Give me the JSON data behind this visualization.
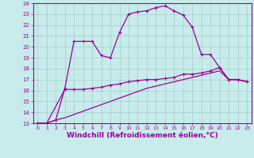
{
  "xlabel": "Windchill (Refroidissement éolien,°C)",
  "background_color": "#c8ecec",
  "grid_color": "#aad0d0",
  "line_color": "#990099",
  "xlim": [
    -0.5,
    23.5
  ],
  "ylim": [
    13,
    24
  ],
  "xticks": [
    0,
    1,
    2,
    3,
    4,
    5,
    6,
    7,
    8,
    9,
    10,
    11,
    12,
    13,
    14,
    15,
    16,
    17,
    18,
    19,
    20,
    21,
    22,
    23
  ],
  "yticks": [
    13,
    14,
    15,
    16,
    17,
    18,
    19,
    20,
    21,
    22,
    23,
    24
  ],
  "line1_x": [
    0,
    1,
    2,
    3,
    4,
    5,
    6,
    7,
    8,
    9,
    10,
    11,
    12,
    13,
    14,
    15,
    16,
    17,
    18,
    19,
    20,
    21,
    22,
    23
  ],
  "line1_y": [
    13.0,
    13.0,
    13.3,
    16.2,
    20.5,
    20.5,
    20.5,
    19.2,
    19.0,
    21.3,
    23.0,
    23.2,
    23.3,
    23.6,
    23.75,
    23.3,
    22.9,
    21.8,
    19.3,
    19.3,
    18.1,
    17.0,
    17.0,
    16.8
  ],
  "line2_x": [
    0,
    1,
    3,
    4,
    5,
    6,
    7,
    8,
    9,
    10,
    11,
    12,
    13,
    14,
    15,
    16,
    17,
    18,
    19,
    20,
    21,
    22,
    23
  ],
  "line2_y": [
    13.0,
    13.0,
    16.1,
    16.1,
    16.1,
    16.2,
    16.3,
    16.5,
    16.6,
    16.8,
    16.9,
    17.0,
    17.0,
    17.1,
    17.2,
    17.5,
    17.5,
    17.6,
    17.8,
    18.1,
    17.0,
    17.0,
    16.8
  ],
  "line3_x": [
    0,
    1,
    2,
    3,
    4,
    5,
    6,
    7,
    8,
    9,
    10,
    11,
    12,
    13,
    14,
    15,
    16,
    17,
    18,
    19,
    20,
    21,
    22,
    23
  ],
  "line3_y": [
    13.0,
    13.0,
    13.3,
    13.5,
    13.8,
    14.1,
    14.4,
    14.7,
    15.0,
    15.3,
    15.6,
    15.9,
    16.2,
    16.4,
    16.6,
    16.8,
    17.0,
    17.2,
    17.4,
    17.6,
    17.8,
    17.0,
    17.0,
    16.8
  ]
}
